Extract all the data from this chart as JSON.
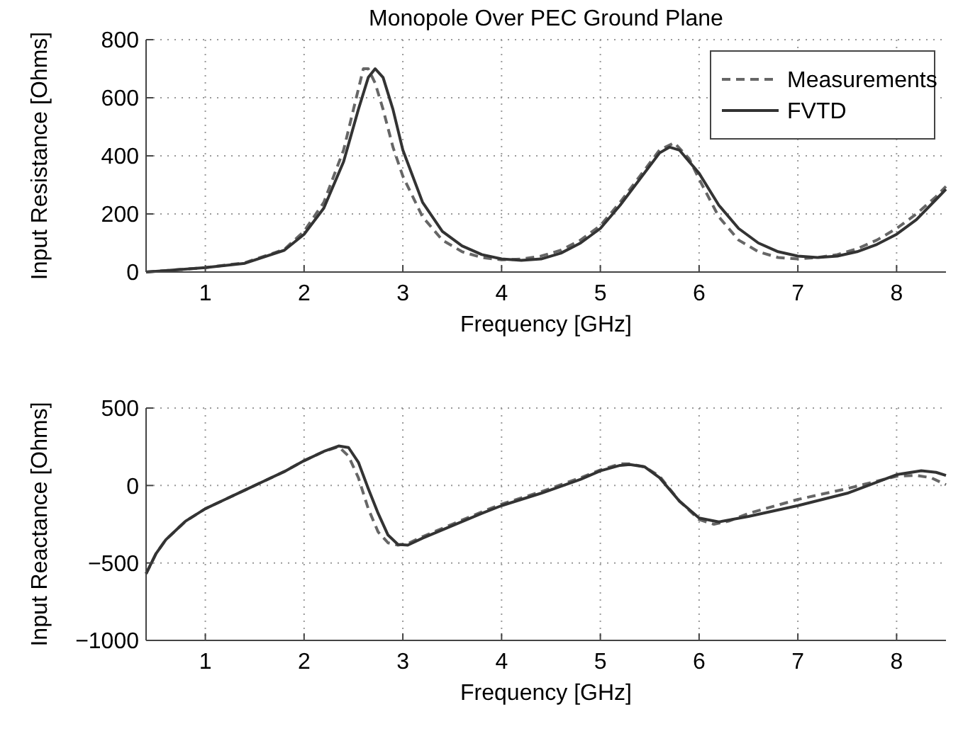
{
  "chart_data": [
    {
      "type": "line",
      "title": "Monopole Over PEC Ground Plane",
      "xlabel": "Frequency [GHz]",
      "ylabel": "Input Resistance [Ohms]",
      "xlim": [
        0.4,
        8.5
      ],
      "xticks": [
        1,
        2,
        3,
        4,
        5,
        6,
        7,
        8
      ],
      "ylim": [
        0,
        800
      ],
      "yticks": [
        0,
        200,
        400,
        600,
        800
      ],
      "grid": true,
      "legend": "top right",
      "series": [
        {
          "name": "Measurements",
          "color": "#666666",
          "line_style": "dashed",
          "x": [
            0.4,
            0.6,
            1,
            1.4,
            1.8,
            2.0,
            2.2,
            2.4,
            2.5,
            2.6,
            2.65,
            2.72,
            2.8,
            2.9,
            3.0,
            3.2,
            3.4,
            3.6,
            3.8,
            4.0,
            4.2,
            4.4,
            4.6,
            4.8,
            5.0,
            5.2,
            5.4,
            5.6,
            5.75,
            5.9,
            6.0,
            6.2,
            6.4,
            6.6,
            6.8,
            7.0,
            7.2,
            7.4,
            7.6,
            7.8,
            8.0,
            8.2,
            8.4,
            8.5
          ],
          "values": [
            0,
            5,
            15,
            32,
            78,
            140,
            240,
            420,
            560,
            700,
            700,
            650,
            560,
            430,
            330,
            190,
            110,
            70,
            50,
            42,
            45,
            55,
            75,
            110,
            160,
            240,
            330,
            420,
            445,
            390,
            320,
            190,
            110,
            70,
            50,
            45,
            50,
            60,
            80,
            110,
            150,
            200,
            260,
            295
          ]
        },
        {
          "name": "FVTD",
          "color": "#333333",
          "line_style": "solid",
          "x": [
            0.4,
            0.6,
            1,
            1.4,
            1.8,
            2.0,
            2.2,
            2.4,
            2.55,
            2.65,
            2.72,
            2.8,
            2.9,
            3.0,
            3.2,
            3.4,
            3.6,
            3.8,
            4.0,
            4.2,
            4.4,
            4.6,
            4.8,
            5.0,
            5.2,
            5.4,
            5.6,
            5.7,
            5.8,
            6.0,
            6.2,
            6.4,
            6.6,
            6.8,
            7.0,
            7.2,
            7.4,
            7.6,
            7.8,
            8.0,
            8.2,
            8.4,
            8.5
          ],
          "values": [
            0,
            5,
            15,
            30,
            75,
            130,
            220,
            380,
            560,
            670,
            700,
            670,
            560,
            420,
            240,
            140,
            90,
            60,
            45,
            40,
            45,
            65,
            100,
            150,
            230,
            320,
            410,
            430,
            420,
            340,
            230,
            150,
            100,
            70,
            55,
            50,
            55,
            70,
            95,
            130,
            180,
            250,
            285
          ]
        }
      ]
    },
    {
      "type": "line",
      "xlabel": "Frequency [GHz]",
      "ylabel": "Input Reactance [Ohms]",
      "xlim": [
        0.4,
        8.5
      ],
      "xticks": [
        1,
        2,
        3,
        4,
        5,
        6,
        7,
        8
      ],
      "ylim": [
        -1000,
        500
      ],
      "yticks": [
        -1000,
        -500,
        0,
        500
      ],
      "grid": true,
      "series": [
        {
          "color": "#666666",
          "line_style": "dashed",
          "x": [
            0.4,
            0.5,
            0.6,
            0.8,
            1.0,
            1.2,
            1.4,
            1.6,
            1.8,
            2.0,
            2.2,
            2.35,
            2.45,
            2.55,
            2.65,
            2.75,
            2.85,
            2.95,
            3.05,
            3.2,
            3.5,
            3.8,
            4.0,
            4.4,
            4.8,
            5.0,
            5.2,
            5.3,
            5.45,
            5.6,
            5.8,
            6.0,
            6.15,
            6.3,
            6.5,
            7.0,
            7.5,
            8.0,
            8.2,
            8.35,
            8.5
          ],
          "values": [
            -570,
            -440,
            -350,
            -230,
            -150,
            -90,
            -30,
            30,
            90,
            160,
            220,
            250,
            190,
            50,
            -150,
            -300,
            -370,
            -385,
            -375,
            -330,
            -250,
            -170,
            -120,
            -40,
            50,
            100,
            140,
            140,
            120,
            60,
            -100,
            -220,
            -250,
            -230,
            -180,
            -90,
            -20,
            60,
            65,
            50,
            5
          ]
        },
        {
          "color": "#333333",
          "line_style": "solid",
          "x": [
            0.4,
            0.5,
            0.6,
            0.8,
            1.0,
            1.2,
            1.4,
            1.6,
            1.8,
            2.0,
            2.2,
            2.35,
            2.45,
            2.55,
            2.65,
            2.75,
            2.85,
            2.95,
            3.05,
            3.2,
            3.5,
            3.8,
            4.0,
            4.4,
            4.8,
            5.0,
            5.2,
            5.3,
            5.45,
            5.6,
            5.8,
            6.0,
            6.2,
            6.5,
            7.0,
            7.5,
            8.0,
            8.25,
            8.4,
            8.5
          ],
          "values": [
            -570,
            -440,
            -350,
            -230,
            -150,
            -90,
            -30,
            30,
            90,
            160,
            220,
            255,
            245,
            150,
            -20,
            -180,
            -320,
            -380,
            -385,
            -340,
            -260,
            -180,
            -130,
            -50,
            40,
            95,
            130,
            135,
            120,
            50,
            -100,
            -210,
            -235,
            -200,
            -130,
            -50,
            70,
            95,
            85,
            65
          ]
        }
      ]
    }
  ]
}
